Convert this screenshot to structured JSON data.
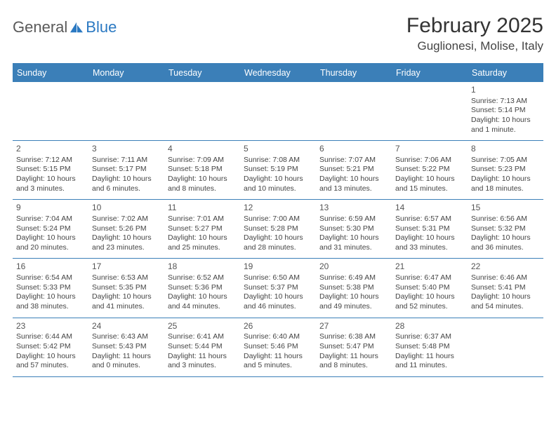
{
  "logo": {
    "text1": "General",
    "text2": "Blue"
  },
  "title": "February 2025",
  "location": "Guglionesi, Molise, Italy",
  "colors": {
    "header_bg": "#3b7fb8",
    "header_text": "#ffffff",
    "rule": "#3b7fb8",
    "body_text": "#444444",
    "logo_gray": "#5a5a5a",
    "logo_blue": "#2b79c2"
  },
  "day_names": [
    "Sunday",
    "Monday",
    "Tuesday",
    "Wednesday",
    "Thursday",
    "Friday",
    "Saturday"
  ],
  "weeks": [
    [
      {
        "n": "",
        "lines": []
      },
      {
        "n": "",
        "lines": []
      },
      {
        "n": "",
        "lines": []
      },
      {
        "n": "",
        "lines": []
      },
      {
        "n": "",
        "lines": []
      },
      {
        "n": "",
        "lines": []
      },
      {
        "n": "1",
        "lines": [
          "Sunrise: 7:13 AM",
          "Sunset: 5:14 PM",
          "Daylight: 10 hours and 1 minute."
        ]
      }
    ],
    [
      {
        "n": "2",
        "lines": [
          "Sunrise: 7:12 AM",
          "Sunset: 5:15 PM",
          "Daylight: 10 hours and 3 minutes."
        ]
      },
      {
        "n": "3",
        "lines": [
          "Sunrise: 7:11 AM",
          "Sunset: 5:17 PM",
          "Daylight: 10 hours and 6 minutes."
        ]
      },
      {
        "n": "4",
        "lines": [
          "Sunrise: 7:09 AM",
          "Sunset: 5:18 PM",
          "Daylight: 10 hours and 8 minutes."
        ]
      },
      {
        "n": "5",
        "lines": [
          "Sunrise: 7:08 AM",
          "Sunset: 5:19 PM",
          "Daylight: 10 hours and 10 minutes."
        ]
      },
      {
        "n": "6",
        "lines": [
          "Sunrise: 7:07 AM",
          "Sunset: 5:21 PM",
          "Daylight: 10 hours and 13 minutes."
        ]
      },
      {
        "n": "7",
        "lines": [
          "Sunrise: 7:06 AM",
          "Sunset: 5:22 PM",
          "Daylight: 10 hours and 15 minutes."
        ]
      },
      {
        "n": "8",
        "lines": [
          "Sunrise: 7:05 AM",
          "Sunset: 5:23 PM",
          "Daylight: 10 hours and 18 minutes."
        ]
      }
    ],
    [
      {
        "n": "9",
        "lines": [
          "Sunrise: 7:04 AM",
          "Sunset: 5:24 PM",
          "Daylight: 10 hours and 20 minutes."
        ]
      },
      {
        "n": "10",
        "lines": [
          "Sunrise: 7:02 AM",
          "Sunset: 5:26 PM",
          "Daylight: 10 hours and 23 minutes."
        ]
      },
      {
        "n": "11",
        "lines": [
          "Sunrise: 7:01 AM",
          "Sunset: 5:27 PM",
          "Daylight: 10 hours and 25 minutes."
        ]
      },
      {
        "n": "12",
        "lines": [
          "Sunrise: 7:00 AM",
          "Sunset: 5:28 PM",
          "Daylight: 10 hours and 28 minutes."
        ]
      },
      {
        "n": "13",
        "lines": [
          "Sunrise: 6:59 AM",
          "Sunset: 5:30 PM",
          "Daylight: 10 hours and 31 minutes."
        ]
      },
      {
        "n": "14",
        "lines": [
          "Sunrise: 6:57 AM",
          "Sunset: 5:31 PM",
          "Daylight: 10 hours and 33 minutes."
        ]
      },
      {
        "n": "15",
        "lines": [
          "Sunrise: 6:56 AM",
          "Sunset: 5:32 PM",
          "Daylight: 10 hours and 36 minutes."
        ]
      }
    ],
    [
      {
        "n": "16",
        "lines": [
          "Sunrise: 6:54 AM",
          "Sunset: 5:33 PM",
          "Daylight: 10 hours and 38 minutes."
        ]
      },
      {
        "n": "17",
        "lines": [
          "Sunrise: 6:53 AM",
          "Sunset: 5:35 PM",
          "Daylight: 10 hours and 41 minutes."
        ]
      },
      {
        "n": "18",
        "lines": [
          "Sunrise: 6:52 AM",
          "Sunset: 5:36 PM",
          "Daylight: 10 hours and 44 minutes."
        ]
      },
      {
        "n": "19",
        "lines": [
          "Sunrise: 6:50 AM",
          "Sunset: 5:37 PM",
          "Daylight: 10 hours and 46 minutes."
        ]
      },
      {
        "n": "20",
        "lines": [
          "Sunrise: 6:49 AM",
          "Sunset: 5:38 PM",
          "Daylight: 10 hours and 49 minutes."
        ]
      },
      {
        "n": "21",
        "lines": [
          "Sunrise: 6:47 AM",
          "Sunset: 5:40 PM",
          "Daylight: 10 hours and 52 minutes."
        ]
      },
      {
        "n": "22",
        "lines": [
          "Sunrise: 6:46 AM",
          "Sunset: 5:41 PM",
          "Daylight: 10 hours and 54 minutes."
        ]
      }
    ],
    [
      {
        "n": "23",
        "lines": [
          "Sunrise: 6:44 AM",
          "Sunset: 5:42 PM",
          "Daylight: 10 hours and 57 minutes."
        ]
      },
      {
        "n": "24",
        "lines": [
          "Sunrise: 6:43 AM",
          "Sunset: 5:43 PM",
          "Daylight: 11 hours and 0 minutes."
        ]
      },
      {
        "n": "25",
        "lines": [
          "Sunrise: 6:41 AM",
          "Sunset: 5:44 PM",
          "Daylight: 11 hours and 3 minutes."
        ]
      },
      {
        "n": "26",
        "lines": [
          "Sunrise: 6:40 AM",
          "Sunset: 5:46 PM",
          "Daylight: 11 hours and 5 minutes."
        ]
      },
      {
        "n": "27",
        "lines": [
          "Sunrise: 6:38 AM",
          "Sunset: 5:47 PM",
          "Daylight: 11 hours and 8 minutes."
        ]
      },
      {
        "n": "28",
        "lines": [
          "Sunrise: 6:37 AM",
          "Sunset: 5:48 PM",
          "Daylight: 11 hours and 11 minutes."
        ]
      },
      {
        "n": "",
        "lines": []
      }
    ]
  ]
}
